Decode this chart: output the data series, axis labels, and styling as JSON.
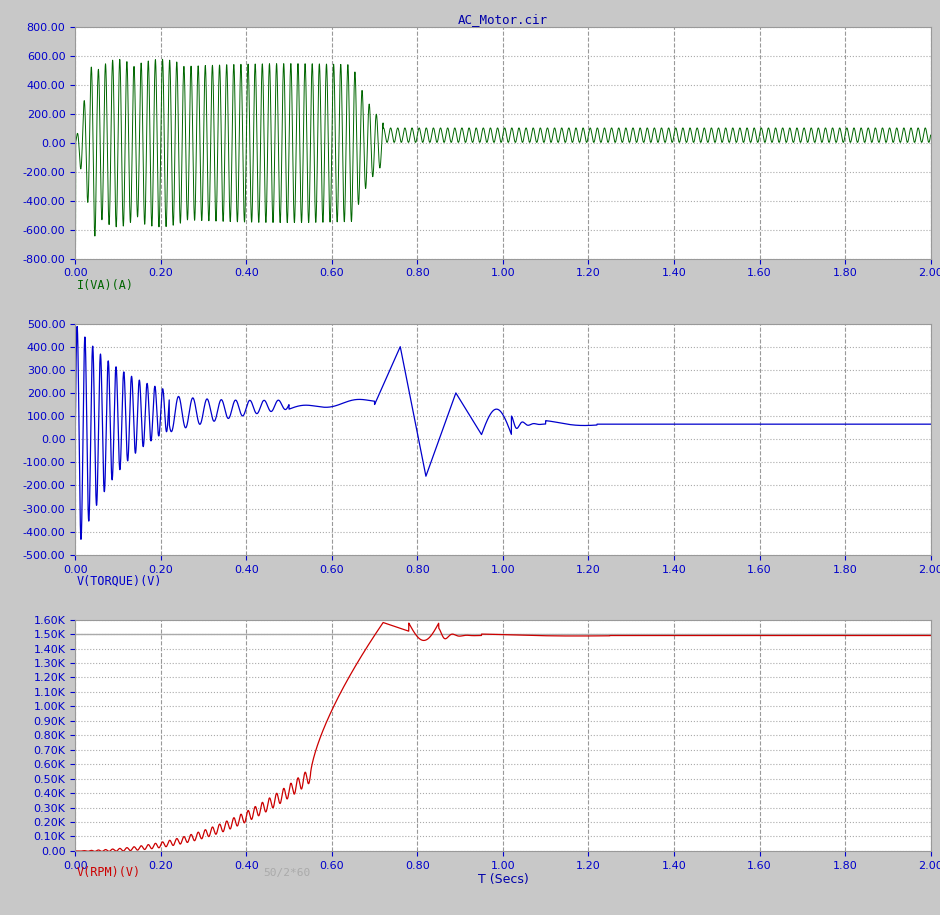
{
  "title": "AC_Motor.cir",
  "bg_color": "#c8c8c8",
  "plot_bg_color": "#ffffff",
  "grid_color_h": "#aaaaaa",
  "grid_color_v": "#888888",
  "t_start": 0.0,
  "t_end": 2.0,
  "xlabel": "T (Secs)",
  "panel1": {
    "ylim": [
      -800,
      800
    ],
    "yticks": [
      -800,
      -600,
      -400,
      -200,
      0,
      200,
      400,
      600,
      800
    ],
    "color": "#006600",
    "label": "I(VA)(A)"
  },
  "panel2": {
    "ylim": [
      -500,
      500
    ],
    "yticks": [
      -500,
      -400,
      -300,
      -200,
      -100,
      0,
      100,
      200,
      300,
      400,
      500
    ],
    "color": "#0000cc",
    "label": "V(TORQUE)(V)"
  },
  "panel3": {
    "ylim": [
      0,
      1600
    ],
    "ytick_labels": [
      "0.00",
      "0.10K",
      "0.20K",
      "0.30K",
      "0.40K",
      "0.50K",
      "0.60K",
      "0.70K",
      "0.80K",
      "0.90K",
      "1.00K",
      "1.10K",
      "1.20K",
      "1.30K",
      "1.40K",
      "1.50K",
      "1.60K"
    ],
    "ytick_vals": [
      0,
      100,
      200,
      300,
      400,
      500,
      600,
      700,
      800,
      900,
      1000,
      1100,
      1200,
      1300,
      1400,
      1500,
      1600
    ],
    "color": "#cc0000",
    "color2": "#aaaaaa",
    "label": "V(RPM)(V)",
    "label2": "50/2*60"
  },
  "xticks": [
    0.0,
    0.2,
    0.4,
    0.6,
    0.8,
    1.0,
    1.2,
    1.4,
    1.6,
    1.8,
    2.0
  ]
}
